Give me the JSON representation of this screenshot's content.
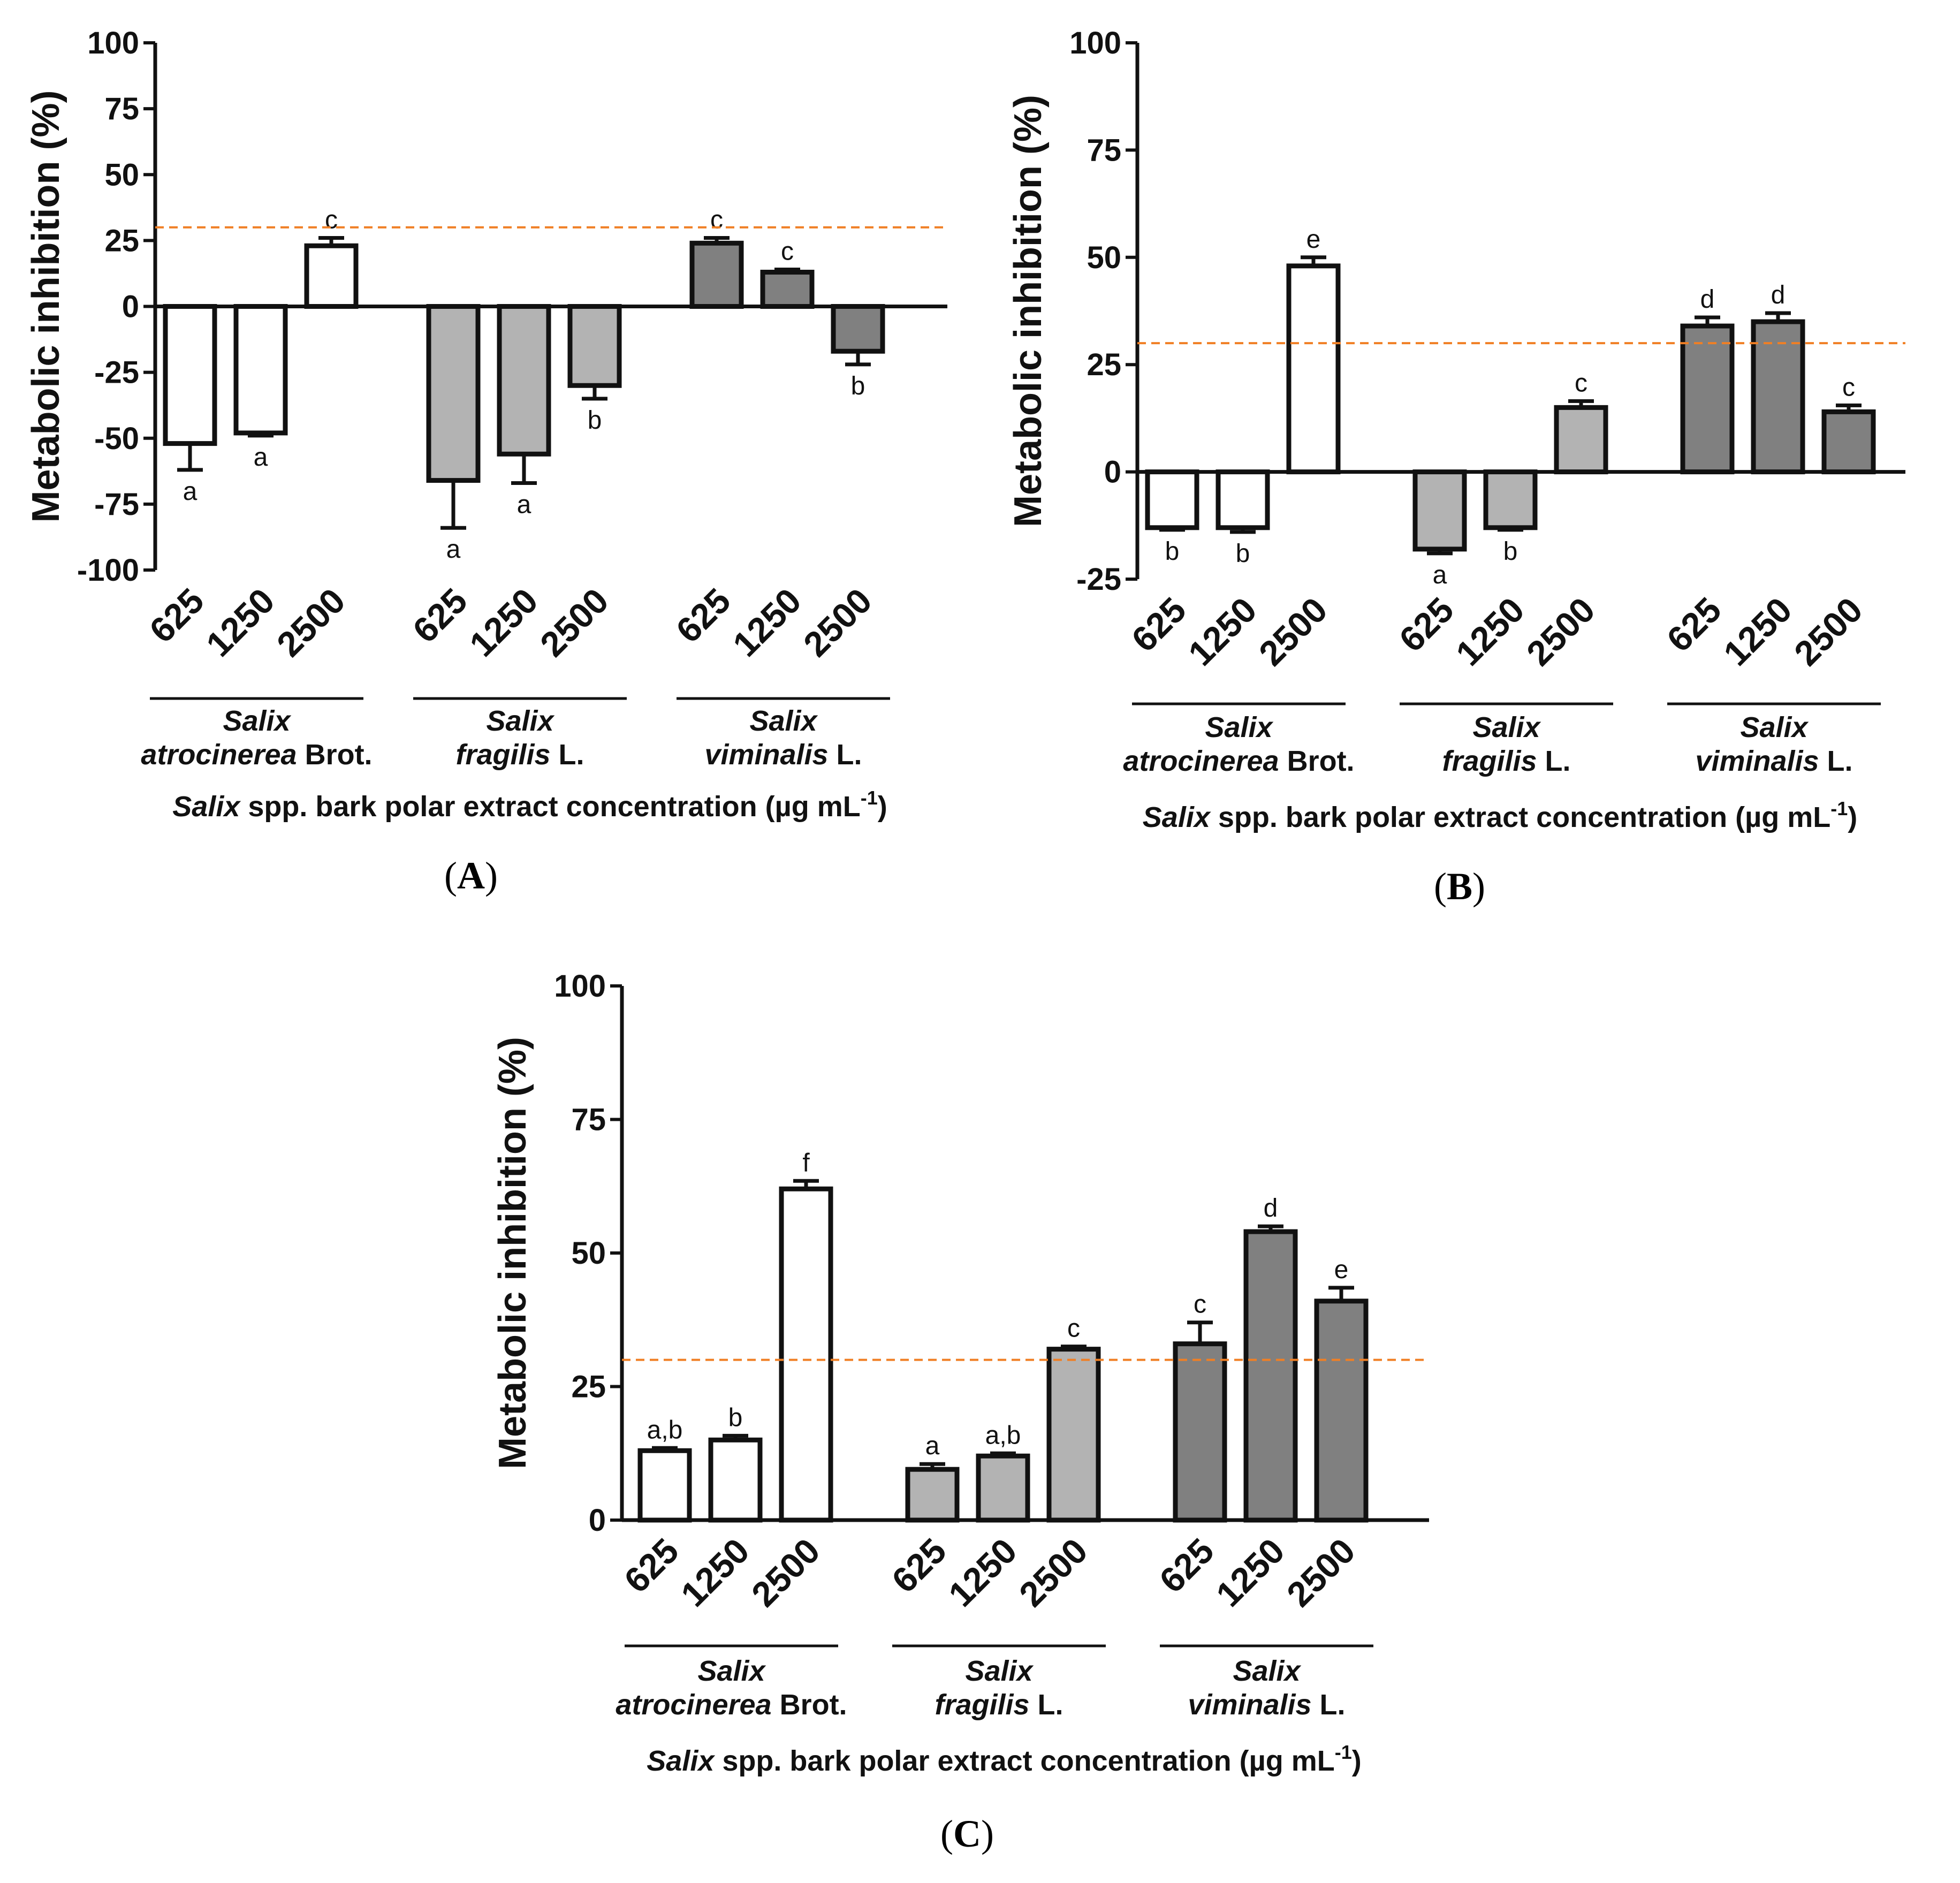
{
  "colors": {
    "group1": "#ffffff",
    "group2": "#b3b3b3",
    "group3": "#808080",
    "threshold": "#f07f24",
    "axis": "#111111"
  },
  "chart_data": [
    {
      "panel": "A",
      "type": "bar",
      "ylabel": "Metabolic inhibition (%)",
      "ylim": [
        -100,
        100
      ],
      "yticks": [
        -100,
        -75,
        -50,
        -25,
        0,
        25,
        50,
        75,
        100
      ],
      "threshold": 30,
      "categories": [
        "625",
        "1250",
        "2500"
      ],
      "groups": [
        {
          "italic": "Salix",
          "line2_italic": "atrocinerea",
          "line2_plain": " Brot.",
          "values": [
            -52,
            -48,
            23
          ],
          "errors": [
            10,
            1,
            3
          ],
          "letters": [
            "a",
            "a",
            "c"
          ]
        },
        {
          "italic": "Salix",
          "line2_italic": "fragilis",
          "line2_plain": " L.",
          "values": [
            -66,
            -56,
            -30
          ],
          "errors": [
            18,
            11,
            5
          ],
          "letters": [
            "a",
            "a",
            "b"
          ]
        },
        {
          "italic": "Salix",
          "line2_italic": "viminalis",
          "line2_plain": " L.",
          "values": [
            24,
            13,
            -17
          ],
          "errors": [
            2,
            1,
            5
          ],
          "letters": [
            "c",
            "c",
            "b"
          ]
        }
      ],
      "xlabel_italic": "Salix",
      "xlabel_rest": " spp. bark polar extract concentration (µg mL",
      "xlabel_sup": "-1",
      "xlabel_end": ")",
      "label": "A"
    },
    {
      "panel": "B",
      "type": "bar",
      "ylabel": "Metabolic inhibition (%)",
      "ylim": [
        -25,
        100
      ],
      "yticks": [
        -25,
        0,
        25,
        50,
        75,
        100
      ],
      "threshold": 30,
      "categories": [
        "625",
        "1250",
        "2500"
      ],
      "groups": [
        {
          "italic": "Salix",
          "line2_italic": "atrocinerea",
          "line2_plain": " Brot.",
          "values": [
            -13,
            -13,
            48
          ],
          "errors": [
            0.5,
            1,
            2
          ],
          "letters": [
            "b",
            "b",
            "e"
          ]
        },
        {
          "italic": "Salix",
          "line2_italic": "fragilis",
          "line2_plain": " L.",
          "values": [
            -18,
            -13,
            15
          ],
          "errors": [
            1,
            0.5,
            1.5
          ],
          "letters": [
            "a",
            "b",
            "c"
          ]
        },
        {
          "italic": "Salix",
          "line2_italic": "viminalis",
          "line2_plain": " L.",
          "values": [
            34,
            35,
            14
          ],
          "errors": [
            2,
            2,
            1.5
          ],
          "letters": [
            "d",
            "d",
            "c"
          ]
        }
      ],
      "xlabel_italic": "Salix",
      "xlabel_rest": " spp. bark polar extract concentration (µg mL",
      "xlabel_sup": "-1",
      "xlabel_end": ")",
      "label": "B"
    },
    {
      "panel": "C",
      "type": "bar",
      "ylabel": "Metabolic inhibition (%)",
      "ylim": [
        0,
        100
      ],
      "yticks": [
        0,
        25,
        50,
        75,
        100
      ],
      "threshold": 30,
      "categories": [
        "625",
        "1250",
        "2500"
      ],
      "groups": [
        {
          "italic": "Salix",
          "line2_italic": "atrocinerea",
          "line2_plain": " Brot.",
          "values": [
            13,
            15,
            62
          ],
          "errors": [
            0.5,
            0.8,
            1.5
          ],
          "letters": [
            "a,b",
            "b",
            "f"
          ]
        },
        {
          "italic": "Salix",
          "line2_italic": "fragilis",
          "line2_plain": " L.",
          "values": [
            9.5,
            12,
            32
          ],
          "errors": [
            1,
            0.5,
            0.5
          ],
          "letters": [
            "a",
            "a,b",
            "c"
          ]
        },
        {
          "italic": "Salix",
          "line2_italic": "viminalis",
          "line2_plain": " L.",
          "values": [
            33,
            54,
            41
          ],
          "errors": [
            4,
            1,
            2.5
          ],
          "letters": [
            "c",
            "d",
            "e"
          ]
        }
      ],
      "xlabel_italic": "Salix",
      "xlabel_rest": " spp. bark polar extract concentration (µg mL",
      "xlabel_sup": "-1",
      "xlabel_end": ")",
      "label": "C"
    }
  ]
}
